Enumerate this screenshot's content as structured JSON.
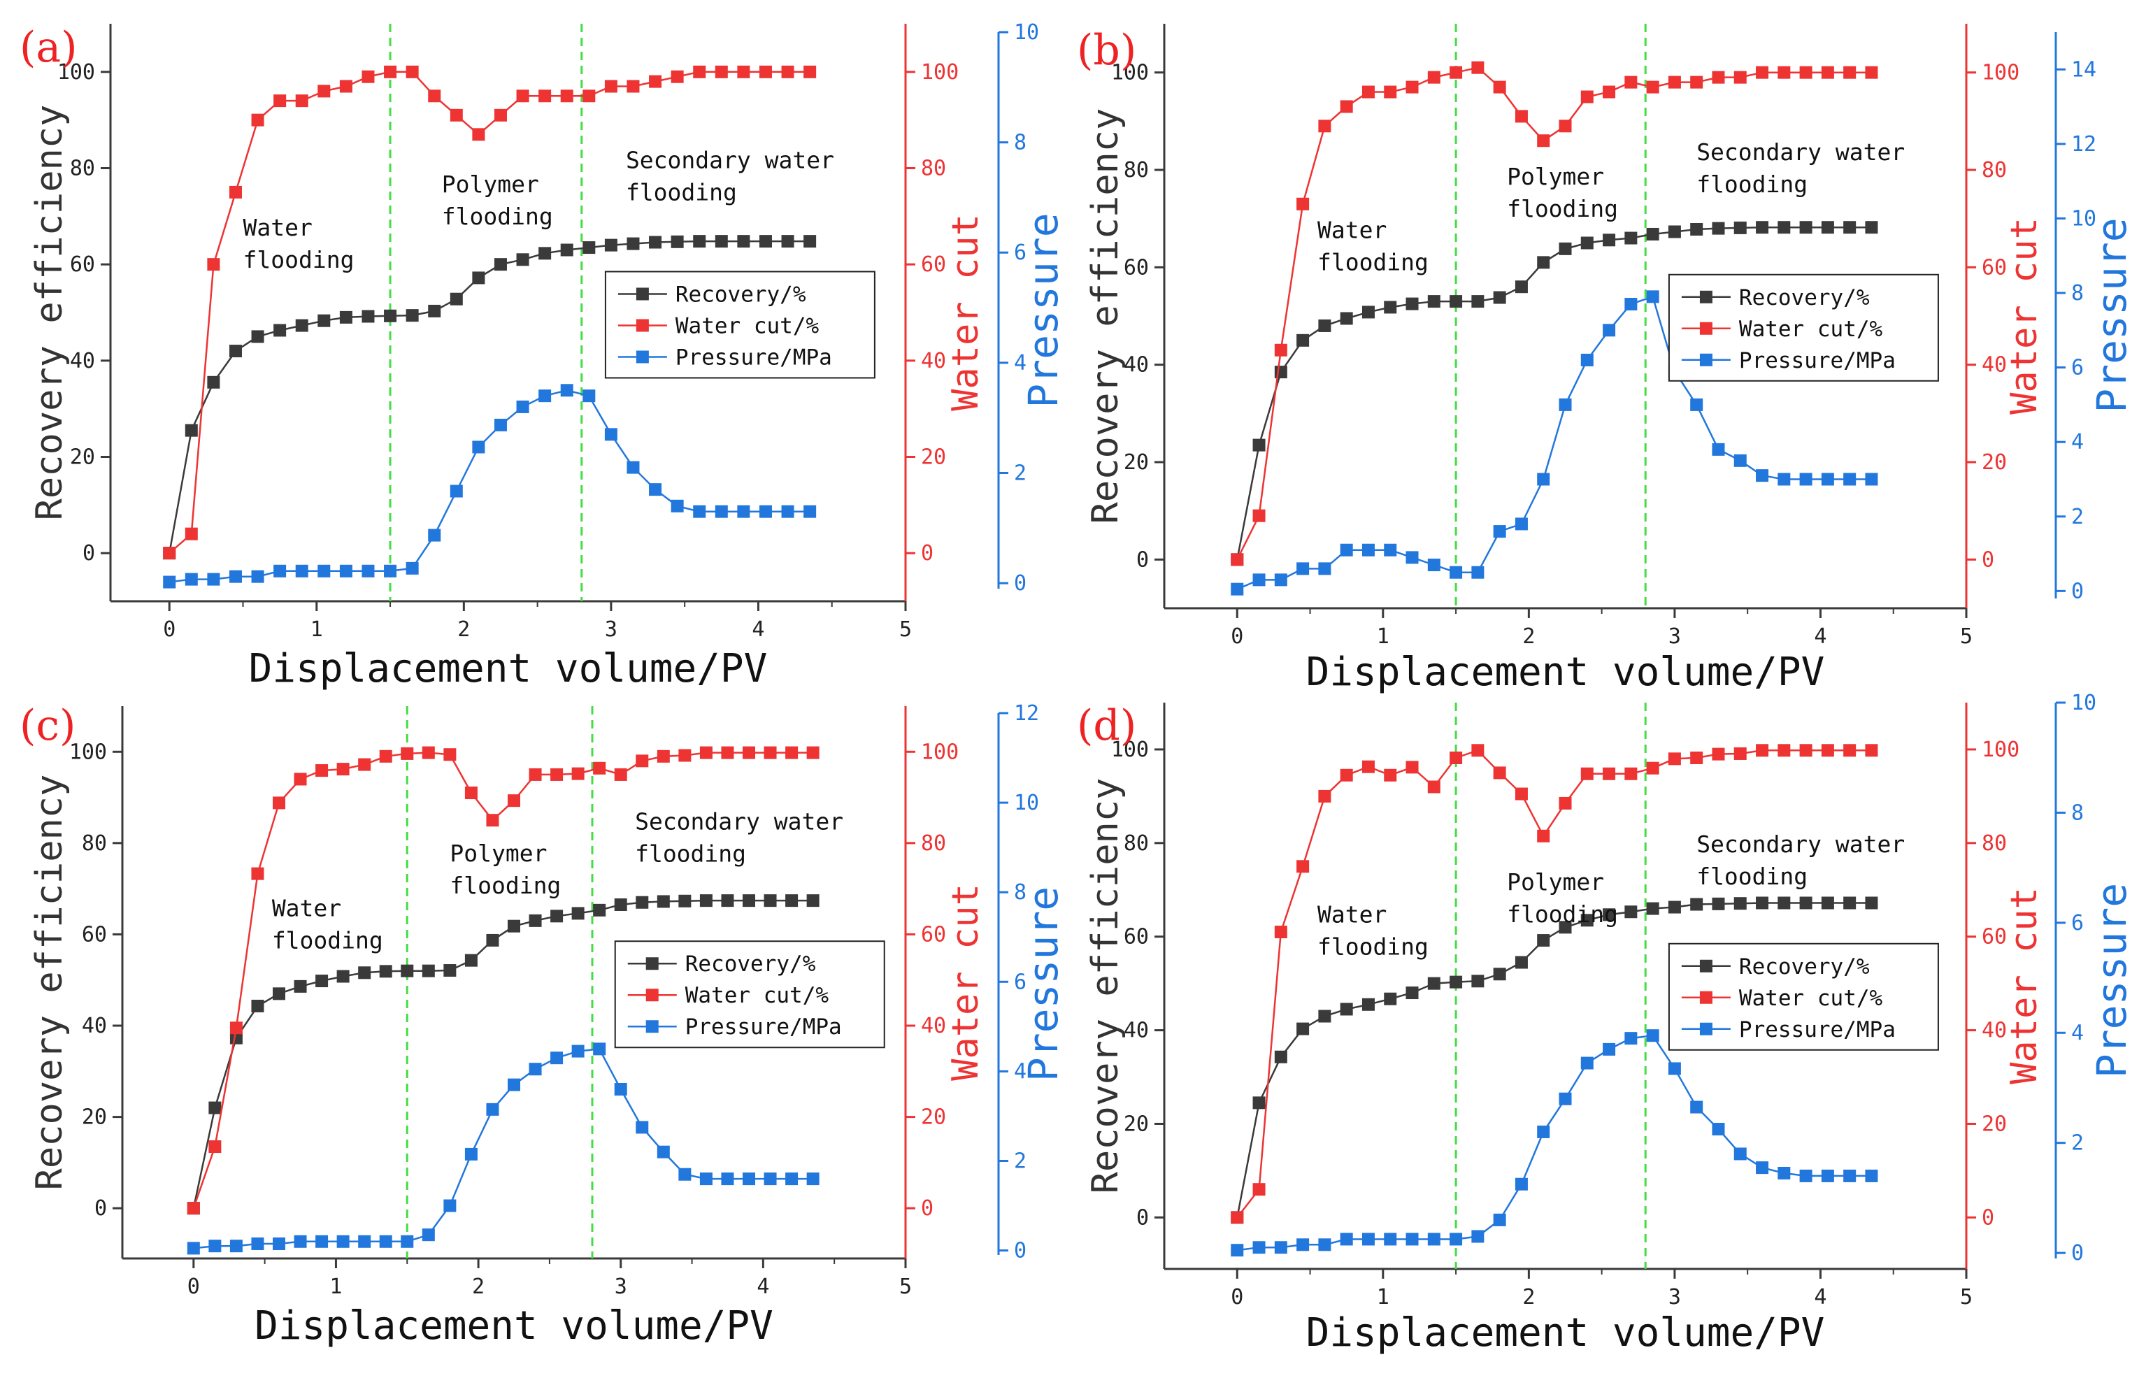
{
  "colors": {
    "recovery": "#3a3a3a",
    "water_cut": "#ee3333",
    "pressure": "#2277dd",
    "vline": "#44dd44",
    "panel_label": "#ee2222",
    "axis": "#3a3a3a"
  },
  "chart_data": [
    {
      "type": "line",
      "panel": "(a)",
      "xlabel": "Displacement volume/PV",
      "ylabel_left": "Recovery efficiency",
      "ylabel_right1": "Water cut",
      "ylabel_right2": "Pressure",
      "xlim": [
        -0.4,
        5
      ],
      "xticks": [
        0,
        1,
        2,
        3,
        4,
        5
      ],
      "ylim_left": [
        -10,
        110
      ],
      "yticks_left": [
        0,
        20,
        40,
        60,
        80,
        100
      ],
      "ylim_water": [
        -10,
        110
      ],
      "yticks_water": [
        0,
        20,
        40,
        60,
        80,
        100
      ],
      "ylim_pressure": [
        -0.1,
        10
      ],
      "yticks_pressure": [
        0,
        2,
        4,
        6,
        8,
        10
      ],
      "vlines": [
        1.5,
        2.8
      ],
      "annotations": [
        {
          "lines": [
            "Water",
            "flooding"
          ],
          "x": 0.5,
          "y": 66
        },
        {
          "lines": [
            "Polymer",
            "flooding"
          ],
          "x": 1.85,
          "y": 75
        },
        {
          "lines": [
            "Secondary water",
            "flooding"
          ],
          "x": 3.1,
          "y": 80
        }
      ],
      "legend": [
        "Recovery/%",
        "Water cut/%",
        "Pressure/MPa"
      ],
      "x": [
        0,
        0.15,
        0.3,
        0.45,
        0.6,
        0.75,
        0.9,
        1.05,
        1.2,
        1.35,
        1.5,
        1.65,
        1.8,
        1.95,
        2.1,
        2.25,
        2.4,
        2.55,
        2.7,
        2.85,
        3.0,
        3.15,
        3.3,
        3.45,
        3.6,
        3.75,
        3.9,
        4.05,
        4.2,
        4.35
      ],
      "series": [
        {
          "name": "Recovery/%",
          "values": [
            0,
            25.5,
            35.5,
            42,
            45,
            46.3,
            47.3,
            48.3,
            49,
            49.2,
            49.3,
            49.4,
            50.3,
            52.8,
            57.2,
            60,
            61,
            62.3,
            63,
            63.5,
            64,
            64.3,
            64.6,
            64.7,
            64.8,
            64.8,
            64.8,
            64.8,
            64.8,
            64.8
          ]
        },
        {
          "name": "Water cut/%",
          "values": [
            0,
            4,
            60,
            75,
            90,
            94,
            94,
            96,
            97,
            99,
            100,
            100,
            95,
            91,
            87,
            91,
            95,
            95,
            95,
            95,
            97,
            97,
            98,
            99,
            100,
            100,
            100,
            100,
            100,
            100
          ]
        },
        {
          "name": "Pressure/MPa",
          "values": [
            0.02,
            0.07,
            0.07,
            0.12,
            0.12,
            0.22,
            0.22,
            0.22,
            0.22,
            0.22,
            0.22,
            0.27,
            0.87,
            1.67,
            2.47,
            2.87,
            3.2,
            3.4,
            3.5,
            3.4,
            2.7,
            2.1,
            1.7,
            1.4,
            1.3,
            1.3,
            1.3,
            1.3,
            1.3,
            1.3
          ]
        }
      ]
    },
    {
      "type": "line",
      "panel": "(b)",
      "xlabel": "Displacement volume/PV",
      "ylabel_left": "Recovery efficiency",
      "ylabel_right1": "Water cut",
      "ylabel_right2": "Pressure",
      "xlim": [
        -0.5,
        5
      ],
      "xticks": [
        0,
        1,
        2,
        3,
        4,
        5
      ],
      "ylim_left": [
        -10,
        110
      ],
      "yticks_left": [
        0,
        20,
        40,
        60,
        80,
        100
      ],
      "ylim_water": [
        -10,
        110
      ],
      "yticks_water": [
        0,
        20,
        40,
        60,
        80,
        100
      ],
      "ylim_pressure": [
        -0.2,
        15
      ],
      "yticks_pressure": [
        0,
        2,
        4,
        6,
        8,
        10,
        12,
        14
      ],
      "vlines": [
        1.5,
        2.8
      ],
      "annotations": [
        {
          "lines": [
            "Water",
            "flooding"
          ],
          "x": 0.55,
          "y": 66
        },
        {
          "lines": [
            "Polymer",
            "flooding"
          ],
          "x": 1.85,
          "y": 77
        },
        {
          "lines": [
            "Secondary water",
            "flooding"
          ],
          "x": 3.15,
          "y": 82
        }
      ],
      "legend": [
        "Recovery/%",
        "Water cut/%",
        "Pressure/MPa"
      ],
      "x": [
        0,
        0.15,
        0.3,
        0.45,
        0.6,
        0.75,
        0.9,
        1.05,
        1.2,
        1.35,
        1.5,
        1.65,
        1.8,
        1.95,
        2.1,
        2.25,
        2.4,
        2.55,
        2.7,
        2.85,
        3.0,
        3.15,
        3.3,
        3.45,
        3.6,
        3.75,
        3.9,
        4.05,
        4.2,
        4.35
      ],
      "series": [
        {
          "name": "Recovery/%",
          "values": [
            0,
            23.5,
            38.5,
            45,
            48,
            49.5,
            50.8,
            51.8,
            52.5,
            53,
            53,
            53,
            53.8,
            56,
            61,
            63.8,
            65,
            65.6,
            66,
            66.8,
            67.3,
            67.8,
            68,
            68.1,
            68.2,
            68.2,
            68.2,
            68.2,
            68.2,
            68.2
          ]
        },
        {
          "name": "Water cut/%",
          "values": [
            0,
            9,
            43,
            73,
            89,
            93,
            96,
            96,
            97,
            99,
            100,
            101,
            97,
            91,
            86,
            89,
            95,
            96,
            98,
            97,
            98,
            98,
            99,
            99,
            100,
            100,
            100,
            100,
            100,
            100
          ]
        },
        {
          "name": "Pressure/MPa",
          "values": [
            0.05,
            0.3,
            0.3,
            0.6,
            0.6,
            1.1,
            1.1,
            1.1,
            0.9,
            0.7,
            0.5,
            0.5,
            1.6,
            1.8,
            3.0,
            5.0,
            6.2,
            7.0,
            7.7,
            7.9,
            5.9,
            5.0,
            3.8,
            3.5,
            3.1,
            3.0,
            3.0,
            3.0,
            3.0,
            3.0
          ]
        }
      ]
    },
    {
      "type": "line",
      "panel": "(c)",
      "xlabel": "Displacement volume/PV",
      "ylabel_left": "Recovery efficiency",
      "ylabel_right1": "Water cut",
      "ylabel_right2": "Pressure",
      "xlim": [
        -0.5,
        5
      ],
      "xticks": [
        0,
        1,
        2,
        3,
        4,
        5
      ],
      "ylim_left": [
        -11,
        110
      ],
      "yticks_left": [
        0,
        20,
        40,
        60,
        80,
        100
      ],
      "ylim_water": [
        -11,
        110
      ],
      "yticks_water": [
        0,
        20,
        40,
        60,
        80,
        100
      ],
      "ylim_pressure": [
        -0.1,
        12
      ],
      "yticks_pressure": [
        0,
        2,
        4,
        6,
        8,
        10,
        12
      ],
      "vlines": [
        1.5,
        2.8
      ],
      "annotations": [
        {
          "lines": [
            "Water",
            "flooding"
          ],
          "x": 0.55,
          "y": 64
        },
        {
          "lines": [
            "Polymer",
            "flooding"
          ],
          "x": 1.8,
          "y": 76
        },
        {
          "lines": [
            "Secondary water",
            "flooding"
          ],
          "x": 3.1,
          "y": 83
        }
      ],
      "legend": [
        "Recovery/%",
        "Water cut/%",
        "Pressure/MPa"
      ],
      "x": [
        0,
        0.15,
        0.3,
        0.45,
        0.6,
        0.75,
        0.9,
        1.05,
        1.2,
        1.35,
        1.5,
        1.65,
        1.8,
        1.95,
        2.1,
        2.25,
        2.4,
        2.55,
        2.7,
        2.85,
        3.0,
        3.15,
        3.3,
        3.45,
        3.6,
        3.75,
        3.9,
        4.05,
        4.2,
        4.35
      ],
      "series": [
        {
          "name": "Recovery/%",
          "values": [
            0,
            22,
            37.3,
            44.3,
            47,
            48.6,
            49.8,
            50.8,
            51.6,
            51.9,
            52,
            52,
            52.1,
            54.3,
            58.7,
            61.8,
            63,
            64,
            64.6,
            65.3,
            66.5,
            67,
            67.2,
            67.3,
            67.4,
            67.4,
            67.4,
            67.4,
            67.4,
            67.4
          ]
        },
        {
          "name": "Water cut/%",
          "values": [
            0,
            13.5,
            39.5,
            73.3,
            88.8,
            94,
            95.9,
            96.2,
            97.2,
            99,
            99.6,
            99.8,
            99.4,
            91,
            85,
            89.3,
            95,
            95,
            95.2,
            96.4,
            95,
            98,
            99,
            99.2,
            99.8,
            99.8,
            99.8,
            99.8,
            99.8,
            99.8
          ]
        },
        {
          "name": "Pressure/MPa",
          "values": [
            0.05,
            0.1,
            0.1,
            0.15,
            0.15,
            0.2,
            0.2,
            0.2,
            0.2,
            0.2,
            0.2,
            0.35,
            1.0,
            2.15,
            3.15,
            3.7,
            4.05,
            4.3,
            4.45,
            4.5,
            3.6,
            2.75,
            2.2,
            1.7,
            1.6,
            1.6,
            1.6,
            1.6,
            1.6,
            1.6
          ]
        }
      ]
    },
    {
      "type": "line",
      "panel": "(d)",
      "xlabel": "Displacement volume/PV",
      "ylabel_left": "Recovery efficiency",
      "ylabel_right1": "Water cut",
      "ylabel_right2": "Pressure",
      "xlim": [
        -0.5,
        5
      ],
      "xticks": [
        0,
        1,
        2,
        3,
        4,
        5
      ],
      "ylim_left": [
        -11,
        110
      ],
      "yticks_left": [
        0,
        20,
        40,
        60,
        80,
        100
      ],
      "ylim_water": [
        -11,
        110
      ],
      "yticks_water": [
        0,
        20,
        40,
        60,
        80,
        100
      ],
      "ylim_pressure": [
        -0.1,
        10
      ],
      "yticks_pressure": [
        0,
        2,
        4,
        6,
        8,
        10
      ],
      "vlines": [
        1.5,
        2.8
      ],
      "annotations": [
        {
          "lines": [
            "Water",
            "flooding"
          ],
          "x": 0.55,
          "y": 63
        },
        {
          "lines": [
            "Polymer",
            "flooding"
          ],
          "x": 1.85,
          "y": 70
        },
        {
          "lines": [
            "Secondary water",
            "flooding"
          ],
          "x": 3.15,
          "y": 78
        }
      ],
      "legend": [
        "Recovery/%",
        "Water cut/%",
        "Pressure/MPa"
      ],
      "x": [
        0,
        0.15,
        0.3,
        0.45,
        0.6,
        0.75,
        0.9,
        1.05,
        1.2,
        1.35,
        1.5,
        1.65,
        1.8,
        1.95,
        2.1,
        2.25,
        2.4,
        2.55,
        2.7,
        2.85,
        3.0,
        3.15,
        3.3,
        3.45,
        3.6,
        3.75,
        3.9,
        4.05,
        4.2,
        4.35
      ],
      "series": [
        {
          "name": "Recovery/%",
          "values": [
            0,
            24.5,
            34.3,
            40.3,
            43,
            44.5,
            45.5,
            46.7,
            48,
            50,
            50.3,
            50.5,
            52,
            54.5,
            59.2,
            62,
            63.5,
            64.7,
            65.3,
            66,
            66.3,
            66.9,
            67,
            67.1,
            67.2,
            67.2,
            67.2,
            67.2,
            67.2,
            67.2
          ]
        },
        {
          "name": "Water cut/%",
          "values": [
            0,
            6,
            61,
            75,
            90,
            94.5,
            96.3,
            94.5,
            96.2,
            92,
            98.2,
            99.8,
            95,
            90.5,
            81.5,
            88.5,
            94.8,
            94.8,
            94.8,
            96,
            98,
            98.2,
            99,
            99.1,
            99.8,
            99.8,
            99.8,
            99.8,
            99.8,
            99.8
          ]
        },
        {
          "name": "Pressure/MPa",
          "values": [
            0.05,
            0.1,
            0.1,
            0.15,
            0.15,
            0.25,
            0.25,
            0.25,
            0.25,
            0.25,
            0.25,
            0.3,
            0.6,
            1.25,
            2.2,
            2.8,
            3.45,
            3.7,
            3.9,
            3.95,
            3.35,
            2.65,
            2.25,
            1.8,
            1.55,
            1.45,
            1.4,
            1.4,
            1.4,
            1.4
          ]
        }
      ]
    }
  ]
}
